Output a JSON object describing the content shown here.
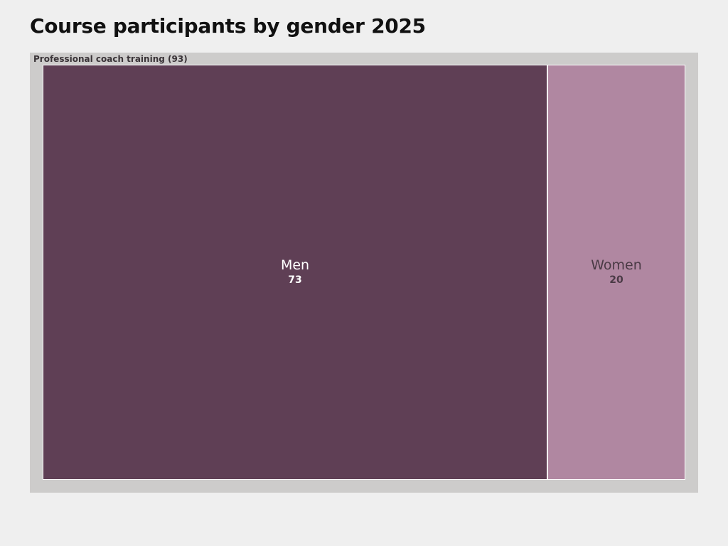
{
  "title": "Course participants by gender 2025",
  "chart_data": {
    "type": "treemap",
    "title": "Course participants by gender 2025",
    "group": {
      "name": "Professional coach training",
      "total": 93,
      "label": "Professional coach training (93)"
    },
    "items": [
      {
        "name": "Men",
        "value": 73,
        "color": "#5f3f55",
        "text_color": "#ffffff"
      },
      {
        "name": "Women",
        "value": 20,
        "color": "#b087a1",
        "text_color": "#4a3a45"
      }
    ]
  }
}
